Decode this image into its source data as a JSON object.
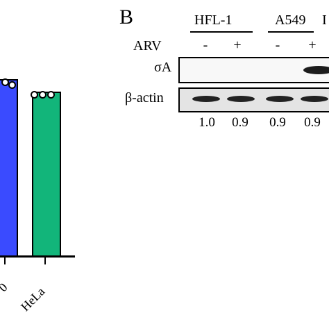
{
  "panel_a": {
    "colors": {
      "bar_1": "#3a4bff",
      "bar_2": "#12b57a"
    },
    "x_labels": [
      "0",
      "HeLa"
    ]
  },
  "panel_b": {
    "letter": "B",
    "cell_lines": [
      "HFL-1",
      "A549",
      "I"
    ],
    "arv_label": "ARV",
    "arv_signs": [
      "-",
      "+",
      "-",
      "+"
    ],
    "row_labels": {
      "sigma_a": "σA",
      "beta_actin": "β-actin"
    },
    "ratios": [
      "1.0",
      "0.9",
      "0.9",
      "0.9"
    ]
  }
}
